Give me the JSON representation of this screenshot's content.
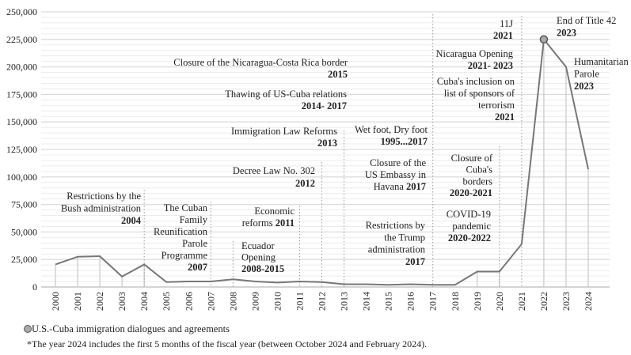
{
  "chart_data": {
    "type": "line",
    "title": "",
    "xlabel": "",
    "ylabel": "",
    "x": [
      2000,
      2001,
      2002,
      2003,
      2004,
      2005,
      2006,
      2007,
      2008,
      2009,
      2010,
      2011,
      2012,
      2013,
      2014,
      2015,
      2016,
      2017,
      2018,
      2019,
      2020,
      2021,
      2022,
      2023,
      2024
    ],
    "x_tick_labels": [
      "2000",
      "2001",
      "2002",
      "2003",
      "2004",
      "2005",
      "2006",
      "2007",
      "2008",
      "2009",
      "2010",
      "2011",
      "2012",
      "2013",
      "2014",
      "2015",
      "2016",
      "2017",
      "2018",
      "2019",
      "2020",
      "2021",
      "2022",
      "2023",
      "2024"
    ],
    "values": [
      20500,
      27500,
      28000,
      9500,
      20500,
      4500,
      5000,
      5000,
      7000,
      5000,
      4000,
      5000,
      4500,
      2500,
      2500,
      2000,
      2500,
      2000,
      2000,
      14000,
      14000,
      39000,
      225000,
      200000,
      107000
    ],
    "ylim": [
      0,
      250000
    ],
    "y_ticks": [
      0,
      25000,
      50000,
      75000,
      100000,
      125000,
      150000,
      175000,
      200000,
      225000,
      250000
    ],
    "y_tick_labels": [
      "0",
      "25,000",
      "50,000",
      "75,000",
      "100,000",
      "125,000",
      "150,000",
      "175,000",
      "200,000",
      "225,000",
      "250,000"
    ],
    "grid": true,
    "line_color": "#777777",
    "marked_point": {
      "x": 2022,
      "meaning": "U.S.-Cuba immigration dialogues and agreements"
    },
    "annotations": [
      {
        "year": 2004,
        "lines": [
          "Restrictions by the",
          "Bush administration"
        ],
        "bold": "2004"
      },
      {
        "year": 2007,
        "lines": [
          "The Cuban",
          "Family",
          "Reunification",
          "Parole",
          "Programme"
        ],
        "bold": "2007"
      },
      {
        "year": 2008,
        "lines": [
          "Ecuador",
          "Opening"
        ],
        "bold": "2008-2015"
      },
      {
        "year": 2011,
        "lines": [
          "Economic"
        ],
        "tail": "reforms ",
        "bold": "2011"
      },
      {
        "year": 2012,
        "lines": [
          "Decree Law No. 302"
        ],
        "bold": "2012"
      },
      {
        "year": 2013,
        "lines": [
          "Immigration Law Reforms"
        ],
        "bold": "2013"
      },
      {
        "year": 2014,
        "lines": [
          "Thawing of US-Cuba relations"
        ],
        "bold": "2014- 2017"
      },
      {
        "year": 2015,
        "lines": [
          "Closure of the Nicaragua-Costa Rica border"
        ],
        "bold": "2015"
      },
      {
        "year": 2017,
        "lines": [
          "Wet foot, Dry foot"
        ],
        "bold": "1995...2017"
      },
      {
        "year": 2017,
        "lines": [
          "Closure of the",
          "US Embassy in"
        ],
        "tail": "Havana ",
        "bold": "2017"
      },
      {
        "year": 2017,
        "lines": [
          "Restrictions by",
          "the Trump",
          "administration"
        ],
        "bold": "2017"
      },
      {
        "year": 2020,
        "lines": [
          "Closure of",
          "Cuba's",
          "borders"
        ],
        "bold": "2020-2021"
      },
      {
        "year": 2020,
        "lines": [
          "COVID-19",
          "pandemic"
        ],
        "bold": "2020-2022"
      },
      {
        "year": 2021,
        "lines": [
          "11J"
        ],
        "bold": "2021"
      },
      {
        "year": 2021,
        "lines": [
          "Nicaragua Opening"
        ],
        "bold": "2021- 2023"
      },
      {
        "year": 2021,
        "lines": [
          "Cuba's inclusion on",
          "list of sponsors of",
          "terrorism"
        ],
        "bold": "2021"
      },
      {
        "year": 2022,
        "lines": [
          "End of Title 42"
        ],
        "bold": "2023"
      },
      {
        "year": 2023,
        "lines": [
          "Humanitarian",
          "Parole"
        ],
        "bold": "2023"
      }
    ]
  },
  "legend": {
    "marker_label": "U.S.-Cuba immigration dialogues and agreements"
  },
  "footnote": "*The year 2024 includes the first 5 months of the fiscal year (between October 2024 and February 2024)."
}
